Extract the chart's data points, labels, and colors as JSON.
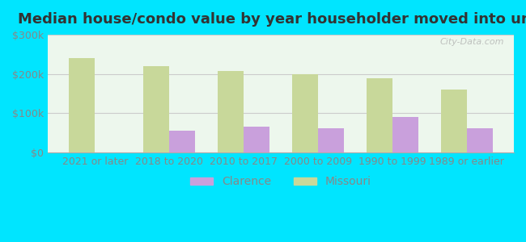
{
  "title": "Median house/condo value by year householder moved into unit",
  "categories": [
    "2021 or later",
    "2018 to 2020",
    "2010 to 2017",
    "2000 to 2009",
    "1990 to 1999",
    "1989 or earlier"
  ],
  "clarence_values": [
    0,
    55000,
    65000,
    62000,
    90000,
    62000
  ],
  "missouri_values": [
    240000,
    220000,
    207000,
    200000,
    190000,
    160000
  ],
  "clarence_color": "#c9a0dc",
  "missouri_color": "#c8d89a",
  "background_color": "#00e5ff",
  "plot_bg_top": "#f0f8f0",
  "plot_bg_bottom": "#e8f8f8",
  "ylim": [
    0,
    300000
  ],
  "yticks": [
    0,
    100000,
    200000,
    300000
  ],
  "ytick_labels": [
    "$0",
    "$100k",
    "$200k",
    "$300k"
  ],
  "watermark": "City-Data.com",
  "legend_labels": [
    "Clarence",
    "Missouri"
  ],
  "bar_width": 0.35,
  "title_fontsize": 13,
  "tick_fontsize": 9,
  "legend_fontsize": 10
}
